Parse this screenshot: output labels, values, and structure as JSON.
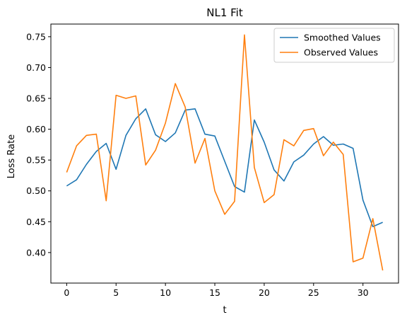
{
  "chart_data": {
    "type": "line",
    "title": "NL1 Fit",
    "xlabel": "t",
    "ylabel": "Loss Rate",
    "xlim": [
      -1.6,
      33.6
    ],
    "ylim": [
      0.3505,
      0.7705
    ],
    "x_ticks": [
      0,
      5,
      10,
      15,
      20,
      25,
      30
    ],
    "y_ticks": [
      0.4,
      0.45,
      0.5,
      0.55,
      0.6,
      0.65,
      0.7,
      0.75
    ],
    "grid": false,
    "legend": "top-right",
    "x": [
      0,
      1,
      2,
      3,
      4,
      5,
      6,
      7,
      8,
      9,
      10,
      11,
      12,
      13,
      14,
      15,
      16,
      17,
      18,
      19,
      20,
      21,
      22,
      23,
      24,
      25,
      26,
      27,
      28,
      29,
      30,
      31,
      32
    ],
    "series": [
      {
        "name": "Smoothed Values",
        "color": "#1f77b4",
        "values": [
          0.508,
          0.518,
          0.543,
          0.564,
          0.577,
          0.535,
          0.59,
          0.617,
          0.633,
          0.591,
          0.58,
          0.594,
          0.631,
          0.633,
          0.592,
          0.589,
          0.548,
          0.507,
          0.498,
          0.615,
          0.579,
          0.534,
          0.516,
          0.547,
          0.558,
          0.576,
          0.588,
          0.574,
          0.576,
          0.569,
          0.485,
          0.442,
          0.449
        ]
      },
      {
        "name": "Observed Values",
        "color": "#ff7f0e",
        "values": [
          0.53,
          0.573,
          0.59,
          0.592,
          0.484,
          0.655,
          0.65,
          0.654,
          0.542,
          0.566,
          0.61,
          0.674,
          0.636,
          0.545,
          0.585,
          0.5,
          0.462,
          0.483,
          0.753,
          0.538,
          0.481,
          0.494,
          0.583,
          0.573,
          0.598,
          0.601,
          0.557,
          0.579,
          0.559,
          0.385,
          0.391,
          0.455,
          0.371
        ]
      }
    ]
  }
}
